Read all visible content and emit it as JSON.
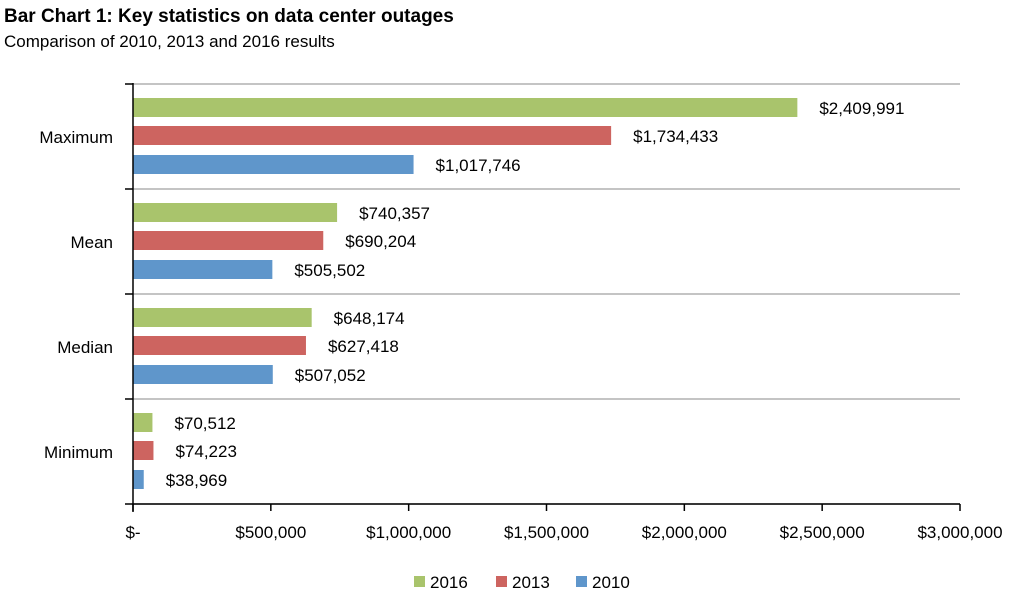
{
  "chart_data": {
    "type": "bar",
    "orientation": "horizontal",
    "title": "Bar Chart 1: Key statistics on data center outages",
    "subtitle": "Comparison of 2010, 2013 and 2016 results",
    "categories": [
      "Maximum",
      "Mean",
      "Median",
      "Minimum"
    ],
    "series": [
      {
        "name": "2016",
        "color": "#a9c46c",
        "values": [
          2409991,
          740357,
          648174,
          70512
        ],
        "labels": [
          "$2,409,991",
          "$740,357",
          "$648,174",
          "$70,512"
        ]
      },
      {
        "name": "2013",
        "color": "#cd6460",
        "values": [
          1734433,
          690204,
          627418,
          74223
        ],
        "labels": [
          "$1,734,433",
          "$690,204",
          "$627,418",
          "$74,223"
        ]
      },
      {
        "name": "2010",
        "color": "#5f96cb",
        "values": [
          1017746,
          505502,
          507052,
          38969
        ],
        "labels": [
          "$1,017,746",
          "$505,502",
          "$507,052",
          "$38,969"
        ]
      }
    ],
    "xlim": [
      0,
      3000000
    ],
    "xticks": [
      0,
      500000,
      1000000,
      1500000,
      2000000,
      2500000,
      3000000
    ],
    "xtick_labels": [
      "$-",
      "$500,000",
      "$1,000,000",
      "$1,500,000",
      "$2,000,000",
      "$2,500,000",
      "$3,000,000"
    ],
    "grid": "horizontal category separators",
    "legend_position": "bottom"
  }
}
